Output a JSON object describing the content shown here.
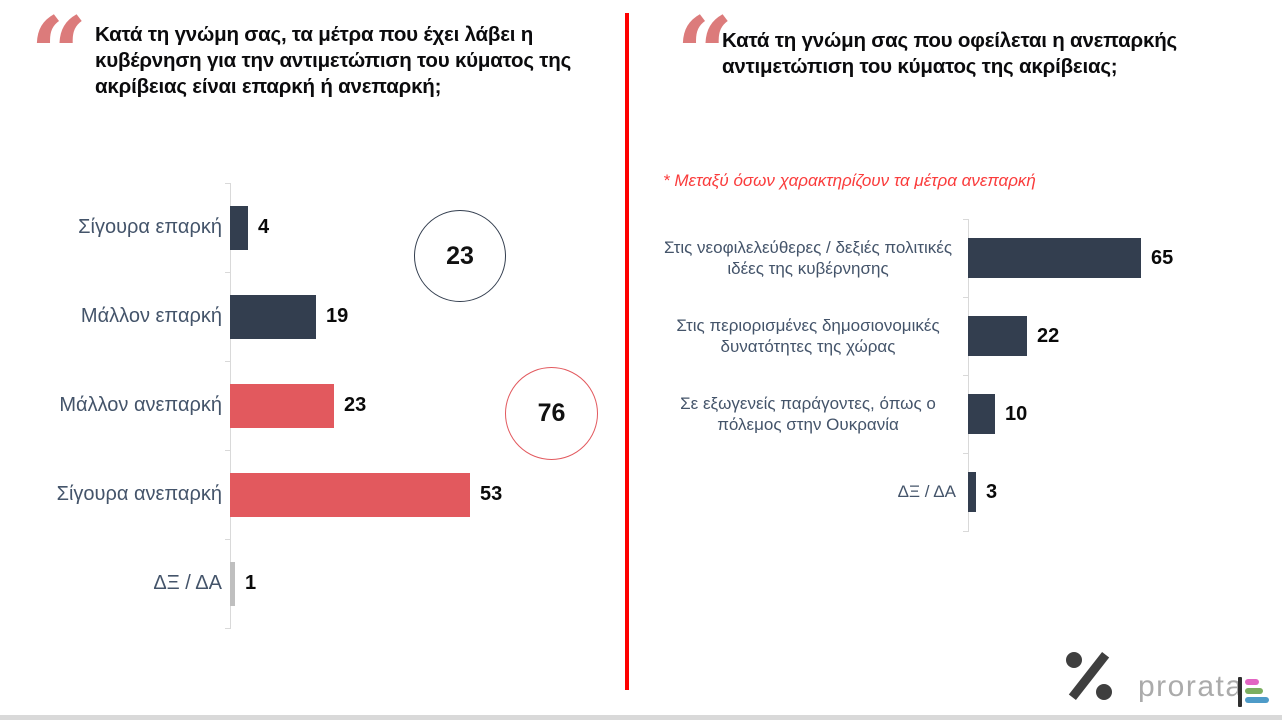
{
  "page": {
    "divider_color": "#fe0000",
    "bottom_strip_color": "#d9d9d9",
    "quote_glyph": "“",
    "quote_color": "#dc7b7b"
  },
  "chart_data": [
    {
      "id": "government-measures-adequacy",
      "type": "bar",
      "orientation": "horizontal",
      "title": "Κατά τη γνώμη σας, τα μέτρα που έχει λάβει η κυβέρνηση για την αντιμετώπιση του κύματος της ακρίβειας είναι επαρκή ή ανεπαρκή;",
      "categories": [
        "Σίγουρα επαρκή",
        "Μάλλον επαρκή",
        "Μάλλον ανεπαρκή",
        "Σίγουρα ανεπαρκή",
        "ΔΞ / ΔΑ"
      ],
      "values": [
        4,
        19,
        23,
        53,
        1
      ],
      "bar_colors": [
        "#333e4f",
        "#333e4f",
        "#e2595e",
        "#e2595e",
        "#bfbfbf"
      ],
      "label_color": "#44546a",
      "axis_color": "#d9d9d9",
      "xlabel": "",
      "ylabel": "",
      "xlim": [
        0,
        55
      ],
      "grid": false,
      "legend": false,
      "data_labels": true,
      "annotations": [
        {
          "text": "23",
          "border_color": "#333e4f"
        },
        {
          "text": "76",
          "border_color": "#e2595e"
        }
      ]
    },
    {
      "id": "causes-of-inadequate-response",
      "type": "bar",
      "orientation": "horizontal",
      "title": "Κατά τη γνώμη σας που οφείλεται η ανεπαρκής αντιμετώπιση του κύματος της ακρίβειας;",
      "footnote": "* Μεταξύ όσων χαρακτηρίζουν τα μέτρα ανεπαρκή",
      "footnote_color": "#fa3c3c",
      "categories": [
        "Στις νεοφιλελεύθερες / δεξιές πολιτικές ιδέες της κυβέρνησης",
        "Στις περιορισμένες δημοσιονομικές δυνατότητες της χώρας",
        "Σε εξωγενείς παράγοντες, όπως ο πόλεμος στην Ουκρανία",
        "ΔΞ / ΔΑ"
      ],
      "values": [
        65,
        22,
        10,
        3
      ],
      "bar_colors": [
        "#333e4f",
        "#333e4f",
        "#333e4f",
        "#333e4f"
      ],
      "label_color": "#44546a",
      "axis_color": "#d9d9d9",
      "xlabel": "",
      "ylabel": "",
      "xlim": [
        0,
        70
      ],
      "grid": false,
      "legend": false,
      "data_labels": true
    }
  ],
  "footer": {
    "logo_text": "prorata",
    "logo_text_color": "#ababab",
    "percent_color": "#3f3f3f",
    "icon_colors": {
      "bar": "#2f2f2f",
      "pink": "#e265c2",
      "green": "#7bae60",
      "blue": "#4e9bc8"
    }
  }
}
